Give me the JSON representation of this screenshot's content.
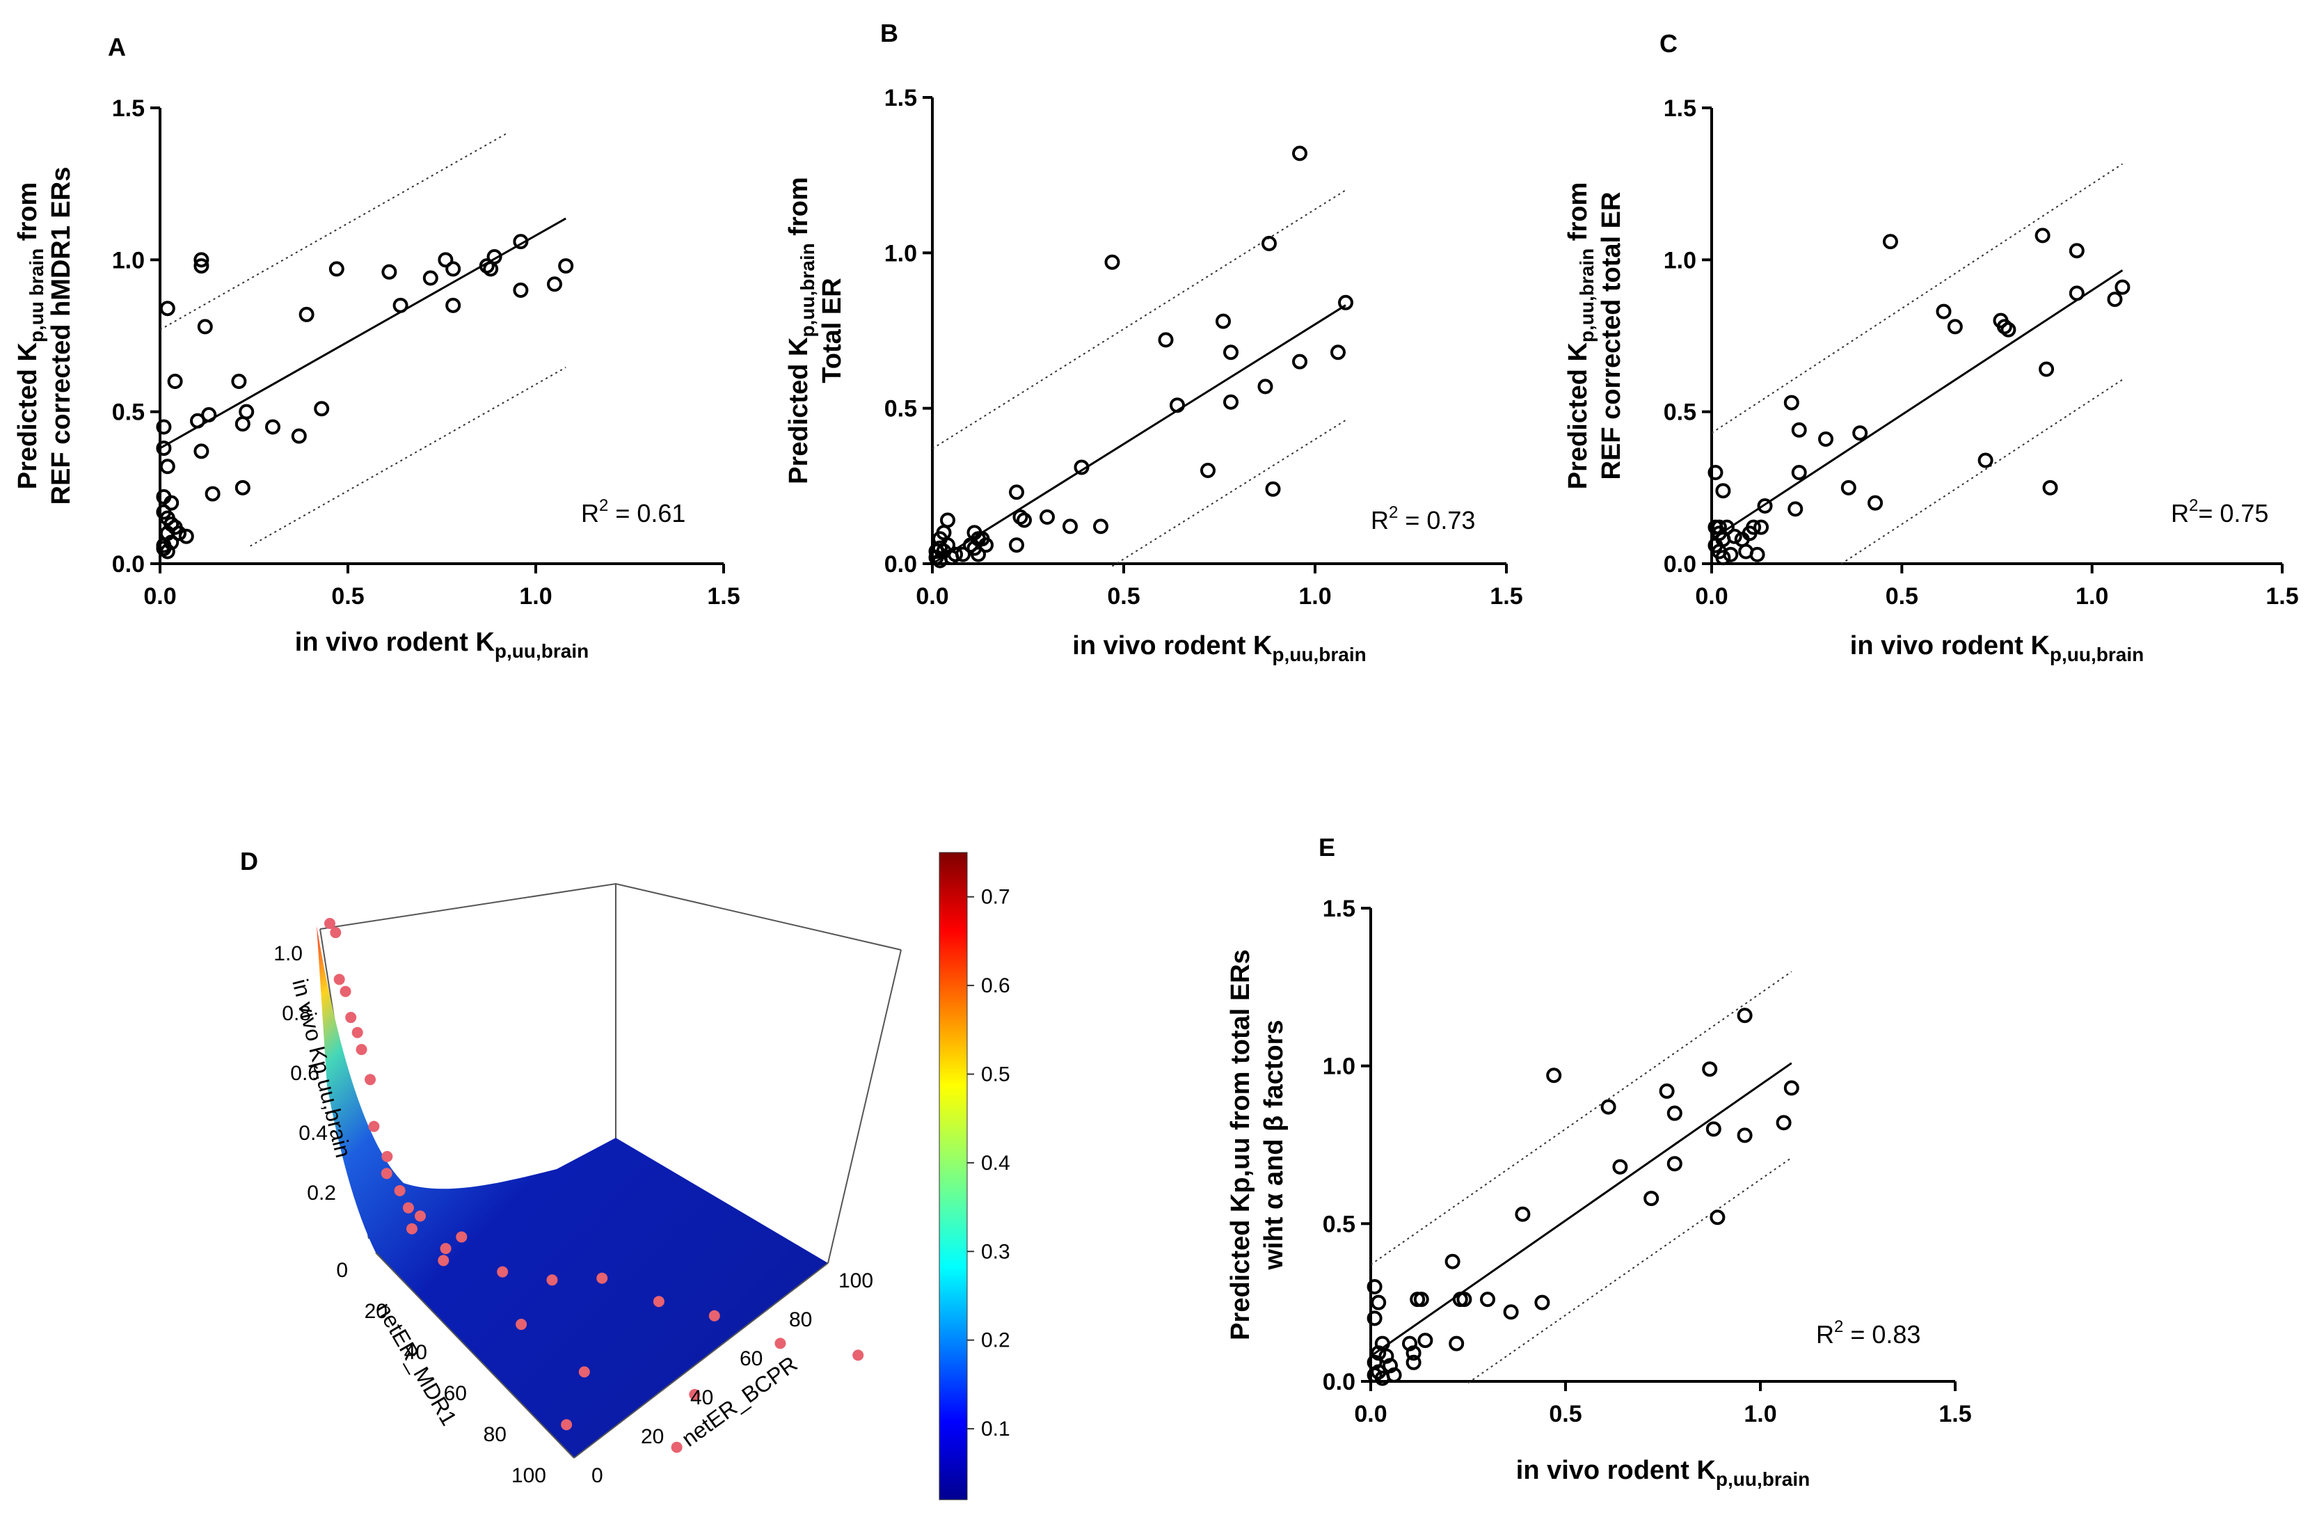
{
  "chart_data": [
    {
      "panel": "A",
      "type": "scatter",
      "xlabel": "in vivo rodent K",
      "xlabel_sub": "p,uu,brain",
      "ylabel_line1_pre": "Predicted K",
      "ylabel_line1_sub": "p,uu brain",
      "ylabel_line1_post": " from",
      "ylabel_line2": "REF corrected hMDR1 ERs",
      "r2_label": "R",
      "r2_sup": "2",
      "r2_value": " = 0.61",
      "xlim": [
        0,
        1.5
      ],
      "ylim": [
        0,
        1.5
      ],
      "xticks": [
        0.0,
        0.5,
        1.0,
        1.5
      ],
      "yticks": [
        0.0,
        0.5,
        1.0,
        1.5
      ],
      "fit": {
        "slope": 0.7,
        "intercept": 0.38,
        "x_range": [
          0,
          1.08
        ]
      },
      "bands": [
        {
          "slope": 0.7,
          "intercept": 0.77,
          "x_range": [
            0,
            0.92
          ]
        },
        {
          "slope": 0.7,
          "intercept": -0.11,
          "x_range": [
            0.24,
            1.08
          ]
        }
      ],
      "points": [
        [
          0.02,
          0.84
        ],
        [
          0.01,
          0.45
        ],
        [
          0.01,
          0.38
        ],
        [
          0.02,
          0.32
        ],
        [
          0.04,
          0.6
        ],
        [
          0.03,
          0.2
        ],
        [
          0.01,
          0.22
        ],
        [
          0.02,
          0.15
        ],
        [
          0.01,
          0.17
        ],
        [
          0.03,
          0.13
        ],
        [
          0.04,
          0.12
        ],
        [
          0.05,
          0.1
        ],
        [
          0.02,
          0.1
        ],
        [
          0.03,
          0.07
        ],
        [
          0.01,
          0.05
        ],
        [
          0.02,
          0.04
        ],
        [
          0.01,
          0.06
        ],
        [
          0.07,
          0.09
        ],
        [
          0.05,
          0.1
        ],
        [
          0.11,
          0.98
        ],
        [
          0.11,
          1.0
        ],
        [
          0.12,
          0.78
        ],
        [
          0.1,
          0.47
        ],
        [
          0.13,
          0.49
        ],
        [
          0.11,
          0.37
        ],
        [
          0.14,
          0.23
        ],
        [
          0.21,
          0.6
        ],
        [
          0.22,
          0.46
        ],
        [
          0.23,
          0.5
        ],
        [
          0.22,
          0.25
        ],
        [
          0.3,
          0.45
        ],
        [
          0.37,
          0.42
        ],
        [
          0.39,
          0.82
        ],
        [
          0.43,
          0.51
        ],
        [
          0.47,
          0.97
        ],
        [
          0.61,
          0.96
        ],
        [
          0.64,
          0.85
        ],
        [
          0.72,
          0.94
        ],
        [
          0.76,
          1.0
        ],
        [
          0.78,
          0.97
        ],
        [
          0.78,
          0.85
        ],
        [
          0.87,
          0.98
        ],
        [
          0.88,
          0.97
        ],
        [
          0.89,
          1.01
        ],
        [
          0.96,
          1.06
        ],
        [
          0.96,
          0.9
        ],
        [
          1.05,
          0.92
        ],
        [
          1.08,
          0.98
        ]
      ]
    },
    {
      "panel": "B",
      "type": "scatter",
      "xlabel": "in vivo rodent K",
      "xlabel_sub": "p,uu,brain",
      "ylabel_line1_pre": "Predicted K",
      "ylabel_line1_sub": "p,uu,brain",
      "ylabel_line1_post": " from",
      "ylabel_line2": "Total ER",
      "r2_label": "R",
      "r2_sup": "2",
      "r2_value": " = 0.73",
      "xlim": [
        0,
        1.5
      ],
      "ylim": [
        0,
        1.5
      ],
      "xticks": [
        0.0,
        0.5,
        1.0,
        1.5
      ],
      "yticks": [
        0.0,
        0.5,
        1.0,
        1.5
      ],
      "fit": {
        "slope": 0.77,
        "intercept": 0.0,
        "x_range": [
          0,
          1.08
        ]
      },
      "bands": [
        {
          "slope": 0.77,
          "intercept": 0.37,
          "x_range": [
            0,
            1.08
          ]
        },
        {
          "slope": 0.77,
          "intercept": -0.37,
          "x_range": [
            0.47,
            1.08
          ]
        }
      ],
      "points": [
        [
          0.01,
          0.02
        ],
        [
          0.02,
          0.05
        ],
        [
          0.03,
          0.1
        ],
        [
          0.04,
          0.14
        ],
        [
          0.02,
          0.08
        ],
        [
          0.03,
          0.04
        ],
        [
          0.05,
          0.02
        ],
        [
          0.06,
          0.03
        ],
        [
          0.04,
          0.06
        ],
        [
          0.01,
          0.04
        ],
        [
          0.02,
          0.01
        ],
        [
          0.08,
          0.03
        ],
        [
          0.1,
          0.06
        ],
        [
          0.11,
          0.1
        ],
        [
          0.12,
          0.08
        ],
        [
          0.11,
          0.05
        ],
        [
          0.12,
          0.03
        ],
        [
          0.13,
          0.08
        ],
        [
          0.14,
          0.06
        ],
        [
          0.22,
          0.23
        ],
        [
          0.22,
          0.06
        ],
        [
          0.23,
          0.15
        ],
        [
          0.24,
          0.14
        ],
        [
          0.3,
          0.15
        ],
        [
          0.36,
          0.12
        ],
        [
          0.39,
          0.31
        ],
        [
          0.44,
          0.12
        ],
        [
          0.47,
          0.97
        ],
        [
          0.61,
          0.72
        ],
        [
          0.64,
          0.51
        ],
        [
          0.72,
          0.3
        ],
        [
          0.76,
          0.78
        ],
        [
          0.78,
          0.52
        ],
        [
          0.78,
          0.68
        ],
        [
          0.87,
          0.57
        ],
        [
          0.88,
          1.03
        ],
        [
          0.89,
          0.24
        ],
        [
          0.96,
          1.32
        ],
        [
          0.96,
          0.65
        ],
        [
          1.06,
          0.68
        ],
        [
          1.08,
          0.84
        ]
      ]
    },
    {
      "panel": "C",
      "type": "scatter",
      "xlabel": "in vivo rodent K",
      "xlabel_sub": "p,uu,brain",
      "ylabel_line1_pre": "Predicted K",
      "ylabel_line1_sub": "p,uu,brain",
      "ylabel_line1_post": " from",
      "ylabel_line2": "REF corrected total ER",
      "r2_label": "R",
      "r2_sup": "2",
      "r2_value": "= 0.75",
      "xlim": [
        0,
        1.5
      ],
      "ylim": [
        0,
        1.5
      ],
      "xticks": [
        0.0,
        0.5,
        1.0,
        1.5
      ],
      "yticks": [
        0.0,
        0.5,
        1.0,
        1.5
      ],
      "fit": {
        "slope": 0.82,
        "intercept": 0.08,
        "x_range": [
          0,
          1.08
        ]
      },
      "bands": [
        {
          "slope": 0.82,
          "intercept": 0.43,
          "x_range": [
            0,
            1.08
          ]
        },
        {
          "slope": 0.82,
          "intercept": -0.28,
          "x_range": [
            0.34,
            1.08
          ]
        }
      ],
      "points": [
        [
          0.01,
          0.3
        ],
        [
          0.03,
          0.24
        ],
        [
          0.01,
          0.12
        ],
        [
          0.02,
          0.1
        ],
        [
          0.03,
          0.08
        ],
        [
          0.01,
          0.06
        ],
        [
          0.02,
          0.04
        ],
        [
          0.03,
          0.02
        ],
        [
          0.04,
          0.12
        ],
        [
          0.05,
          0.03
        ],
        [
          0.06,
          0.09
        ],
        [
          0.02,
          0.12
        ],
        [
          0.08,
          0.08
        ],
        [
          0.09,
          0.04
        ],
        [
          0.1,
          0.1
        ],
        [
          0.11,
          0.12
        ],
        [
          0.12,
          0.03
        ],
        [
          0.13,
          0.12
        ],
        [
          0.14,
          0.19
        ],
        [
          0.21,
          0.53
        ],
        [
          0.22,
          0.18
        ],
        [
          0.23,
          0.44
        ],
        [
          0.23,
          0.3
        ],
        [
          0.3,
          0.41
        ],
        [
          0.36,
          0.25
        ],
        [
          0.39,
          0.43
        ],
        [
          0.43,
          0.2
        ],
        [
          0.47,
          1.06
        ],
        [
          0.61,
          0.83
        ],
        [
          0.64,
          0.78
        ],
        [
          0.72,
          0.34
        ],
        [
          0.76,
          0.8
        ],
        [
          0.77,
          0.78
        ],
        [
          0.78,
          0.77
        ],
        [
          0.87,
          1.08
        ],
        [
          0.88,
          0.64
        ],
        [
          0.89,
          0.25
        ],
        [
          0.96,
          1.03
        ],
        [
          0.96,
          0.89
        ],
        [
          1.06,
          0.87
        ],
        [
          1.08,
          0.91
        ]
      ]
    },
    {
      "panel": "D",
      "type": "surface3d",
      "xlabel": "netER_MDR1",
      "ylabel": "netER_BCPR",
      "zlabel": "in vivo Kp,uu,brain",
      "x_ticks": [
        "0",
        "20",
        "40",
        "60",
        "80",
        "100"
      ],
      "y_ticks": [
        "0",
        "20",
        "40",
        "60",
        "80",
        "100"
      ],
      "z_ticks": [
        "0.2",
        "0.4",
        "0.6",
        "0.8",
        "1.0"
      ],
      "colorbar": {
        "ticks": [
          "0.1",
          "0.2",
          "0.3",
          "0.4",
          "0.5",
          "0.6",
          "0.7"
        ],
        "range": [
          0.02,
          0.75
        ]
      },
      "scatter_points": [
        [
          0,
          0,
          1.1
        ],
        [
          0,
          1,
          1.07
        ],
        [
          1,
          0,
          0.92
        ],
        [
          1,
          1,
          0.88
        ],
        [
          2,
          1,
          0.8
        ],
        [
          2,
          2,
          0.75
        ],
        [
          3,
          2,
          0.7
        ],
        [
          3,
          3,
          0.6
        ],
        [
          4,
          2,
          0.45
        ],
        [
          4,
          4,
          0.35
        ],
        [
          5,
          3,
          0.3
        ],
        [
          6,
          5,
          0.25
        ],
        [
          7,
          6,
          0.2
        ],
        [
          8,
          8,
          0.18
        ],
        [
          10,
          5,
          0.15
        ],
        [
          12,
          15,
          0.14
        ],
        [
          15,
          10,
          0.12
        ],
        [
          18,
          8,
          0.1
        ],
        [
          20,
          20,
          0.08
        ],
        [
          22,
          30,
          0.07
        ],
        [
          25,
          40,
          0.1
        ],
        [
          30,
          50,
          0.06
        ],
        [
          35,
          60,
          0.05
        ],
        [
          40,
          15,
          0.04
        ],
        [
          45,
          70,
          0.03
        ],
        [
          50,
          85,
          0.03
        ],
        [
          60,
          20,
          0.02
        ],
        [
          70,
          40,
          0.02
        ],
        [
          85,
          5,
          0.01
        ],
        [
          95,
          25,
          0.01
        ]
      ]
    },
    {
      "panel": "E",
      "type": "scatter",
      "xlabel": "in vivo rodent K",
      "xlabel_sub": "p,uu,brain",
      "ylabel_line1_pre": "Predicted Kp,uu from total ERs",
      "ylabel_line1_sub": "",
      "ylabel_line1_post": "",
      "ylabel_line2": "wiht α and β factors",
      "r2_label": "R",
      "r2_sup": "2",
      "r2_value": " = 0.83",
      "xlim": [
        0,
        1.5
      ],
      "ylim": [
        0,
        1.5
      ],
      "xticks": [
        0.0,
        0.5,
        1.0,
        1.5
      ],
      "yticks": [
        0.0,
        0.5,
        1.0,
        1.5
      ],
      "fit": {
        "slope": 0.86,
        "intercept": 0.08,
        "x_range": [
          0,
          1.08
        ]
      },
      "bands": [
        {
          "slope": 0.86,
          "intercept": 0.37,
          "x_range": [
            0,
            1.08
          ]
        },
        {
          "slope": 0.86,
          "intercept": -0.22,
          "x_range": [
            0.25,
            1.08
          ]
        }
      ],
      "points": [
        [
          0.01,
          0.3
        ],
        [
          0.02,
          0.25
        ],
        [
          0.01,
          0.2
        ],
        [
          0.03,
          0.12
        ],
        [
          0.02,
          0.09
        ],
        [
          0.01,
          0.06
        ],
        [
          0.04,
          0.08
        ],
        [
          0.02,
          0.03
        ],
        [
          0.03,
          0.01
        ],
        [
          0.05,
          0.05
        ],
        [
          0.06,
          0.02
        ],
        [
          0.01,
          0.02
        ],
        [
          0.1,
          0.12
        ],
        [
          0.11,
          0.09
        ],
        [
          0.12,
          0.26
        ],
        [
          0.13,
          0.26
        ],
        [
          0.11,
          0.06
        ],
        [
          0.14,
          0.13
        ],
        [
          0.21,
          0.38
        ],
        [
          0.22,
          0.12
        ],
        [
          0.23,
          0.26
        ],
        [
          0.24,
          0.26
        ],
        [
          0.3,
          0.26
        ],
        [
          0.36,
          0.22
        ],
        [
          0.39,
          0.53
        ],
        [
          0.44,
          0.25
        ],
        [
          0.47,
          0.97
        ],
        [
          0.61,
          0.87
        ],
        [
          0.64,
          0.68
        ],
        [
          0.72,
          0.58
        ],
        [
          0.76,
          0.92
        ],
        [
          0.78,
          0.85
        ],
        [
          0.78,
          0.69
        ],
        [
          0.87,
          0.99
        ],
        [
          0.88,
          0.8
        ],
        [
          0.89,
          0.52
        ],
        [
          0.96,
          1.16
        ],
        [
          0.96,
          0.78
        ],
        [
          1.06,
          0.82
        ],
        [
          1.08,
          0.93
        ]
      ]
    }
  ]
}
